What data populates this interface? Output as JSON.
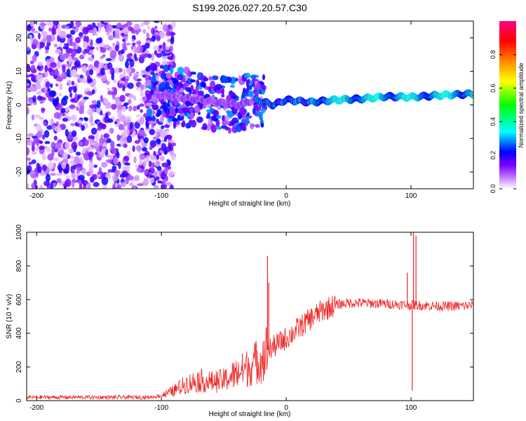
{
  "chart_data": [
    {
      "type": "heatmap",
      "title": "S199.2026.027.20.57.C30",
      "xlabel": "Height of straight line (km)",
      "ylabel": "Frequency (Hz)",
      "xlim": [
        -208,
        150
      ],
      "ylim": [
        -25,
        25
      ],
      "xticks": [
        -200,
        -100,
        0,
        100
      ],
      "yticks": [
        -20,
        -10,
        0,
        10,
        20
      ],
      "colorbar": {
        "label": "Normalized spectral amplitude",
        "range": [
          0,
          1
        ],
        "ticks": [
          0.0,
          0.2,
          0.4,
          0.6,
          0.8
        ],
        "tick_labels": [
          "0.0",
          "0.2",
          "0.4",
          "0.6",
          "0.8"
        ],
        "colors": [
          "#ffffff",
          "#cc88ff",
          "#7700ff",
          "#0000ff",
          "#00ffff",
          "#00ff00",
          "#ffff00",
          "#ff8800",
          "#ff0000",
          "#ff0080"
        ]
      },
      "ridge": {
        "description_points": [
          [
            -100,
            3
          ],
          [
            -80,
            2
          ],
          [
            -60,
            1
          ],
          [
            -40,
            0
          ],
          [
            -25,
            1.5
          ],
          [
            -10,
            0
          ],
          [
            0,
            1.5
          ],
          [
            20,
            0.8
          ],
          [
            40,
            1.5
          ],
          [
            60,
            1.8
          ],
          [
            80,
            2.5
          ],
          [
            100,
            2.3
          ],
          [
            120,
            2.8
          ],
          [
            150,
            3.3
          ]
        ],
        "strong_from": -25,
        "fuzzy_until": -105
      }
    },
    {
      "type": "line",
      "title": "",
      "xlabel": "Height of straight line (km)",
      "ylabel": "SNR (10 * v/v)",
      "xlim": [
        -208,
        150
      ],
      "ylim": [
        0,
        1000
      ],
      "xticks": [
        -200,
        -100,
        0,
        100
      ],
      "yticks": [
        0,
        200,
        400,
        600,
        800,
        1000
      ],
      "color": "#ee2222",
      "series_envelope": [
        {
          "x": -208,
          "y": 20
        },
        {
          "x": -110,
          "y": 20
        },
        {
          "x": -100,
          "y": 30
        },
        {
          "x": -90,
          "y": 60
        },
        {
          "x": -80,
          "y": 100
        },
        {
          "x": -70,
          "y": 120
        },
        {
          "x": -60,
          "y": 110
        },
        {
          "x": -50,
          "y": 120
        },
        {
          "x": -40,
          "y": 160
        },
        {
          "x": -30,
          "y": 200
        },
        {
          "x": -20,
          "y": 250
        },
        {
          "x": -15,
          "y": 300
        },
        {
          "x": -10,
          "y": 320
        },
        {
          "x": 0,
          "y": 370
        },
        {
          "x": 10,
          "y": 430
        },
        {
          "x": 20,
          "y": 490
        },
        {
          "x": 30,
          "y": 540
        },
        {
          "x": 40,
          "y": 570
        },
        {
          "x": 50,
          "y": 580
        },
        {
          "x": 60,
          "y": 580
        },
        {
          "x": 80,
          "y": 575
        },
        {
          "x": 95,
          "y": 570
        },
        {
          "x": 110,
          "y": 565
        },
        {
          "x": 130,
          "y": 560
        },
        {
          "x": 150,
          "y": 565
        }
      ],
      "spikes": [
        {
          "x": -15,
          "y": 860
        },
        {
          "x": -14,
          "y": 700
        },
        {
          "x": 97,
          "y": 760
        },
        {
          "x": 101,
          "y": 60
        },
        {
          "x": 102,
          "y": 1000
        },
        {
          "x": 104,
          "y": 980
        }
      ]
    }
  ]
}
